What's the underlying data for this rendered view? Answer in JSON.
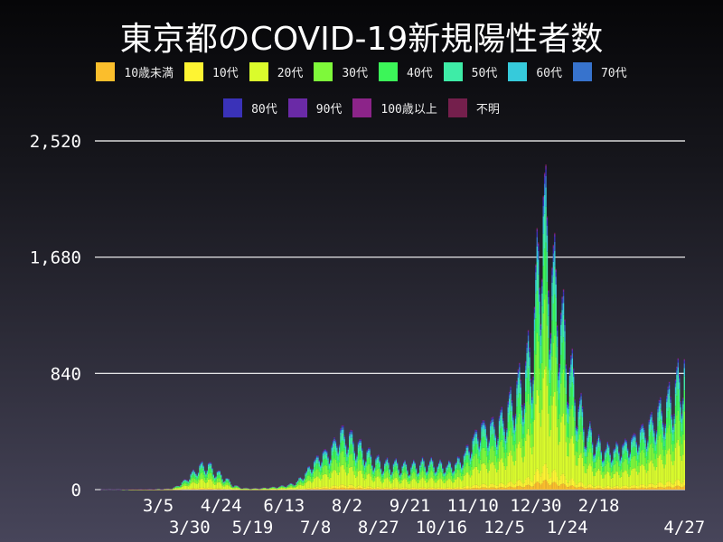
{
  "chart_data": {
    "type": "bar",
    "stacked": true,
    "title": "東京都のCOVID-19新規陽性者数",
    "xlabel": "",
    "ylabel": "",
    "ylim": [
      0,
      2520
    ],
    "yticks": [
      "0",
      "840",
      "1,680",
      "2,520"
    ],
    "ytick_values": [
      0,
      840,
      1680,
      2520
    ],
    "grid": "horizontal",
    "legend_position": "top",
    "xtick_labels": [
      "3/5",
      "3/30",
      "4/24",
      "5/19",
      "6/13",
      "7/8",
      "8/2",
      "8/27",
      "9/21",
      "10/16",
      "11/10",
      "12/5",
      "12/30",
      "1/24",
      "2/18",
      "4/27"
    ],
    "xtick_dates": [
      "2020-03-05",
      "2020-03-30",
      "2020-04-24",
      "2020-05-19",
      "2020-06-13",
      "2020-07-08",
      "2020-08-02",
      "2020-08-27",
      "2020-09-21",
      "2020-10-16",
      "2020-11-10",
      "2020-12-05",
      "2020-12-30",
      "2021-01-24",
      "2021-02-18",
      "2021-04-27"
    ],
    "weekly_start_dates_from": "2020-01-20",
    "weekly_daily_totals": [
      1,
      1,
      1,
      2,
      3,
      3,
      4,
      5,
      8,
      40,
      90,
      150,
      170,
      120,
      80,
      30,
      12,
      8,
      10,
      15,
      20,
      30,
      45,
      100,
      180,
      240,
      260,
      380,
      360,
      300,
      250,
      200,
      170,
      170,
      160,
      150,
      170,
      180,
      170,
      160,
      170,
      220,
      320,
      420,
      420,
      440,
      520,
      650,
      750,
      1000,
      1900,
      1450,
      1200,
      850,
      600,
      400,
      330,
      270,
      270,
      290,
      320,
      380,
      420,
      500,
      560,
      650,
      800
    ],
    "series": [
      {
        "name": "10歳未満",
        "color": "#fbbe2c",
        "share": 0.03
      },
      {
        "name": "10代",
        "color": "#fef432",
        "share": 0.05
      },
      {
        "name": "20代",
        "color": "#dafc2c",
        "share": 0.3
      },
      {
        "name": "30代",
        "color": "#7ef93a",
        "share": 0.22
      },
      {
        "name": "40代",
        "color": "#3cf559",
        "share": 0.16
      },
      {
        "name": "50代",
        "color": "#3eeca7",
        "share": 0.11
      },
      {
        "name": "60代",
        "color": "#36cadb",
        "share": 0.06
      },
      {
        "name": "70代",
        "color": "#3773cd",
        "share": 0.035
      },
      {
        "name": "80代",
        "color": "#3a32b8",
        "share": 0.02
      },
      {
        "name": "90代",
        "color": "#6a2aa6",
        "share": 0.01
      },
      {
        "name": "100歳以上",
        "color": "#8c2489",
        "share": 0.001
      },
      {
        "name": "不明",
        "color": "#741f4c",
        "share": 0.004
      }
    ]
  }
}
